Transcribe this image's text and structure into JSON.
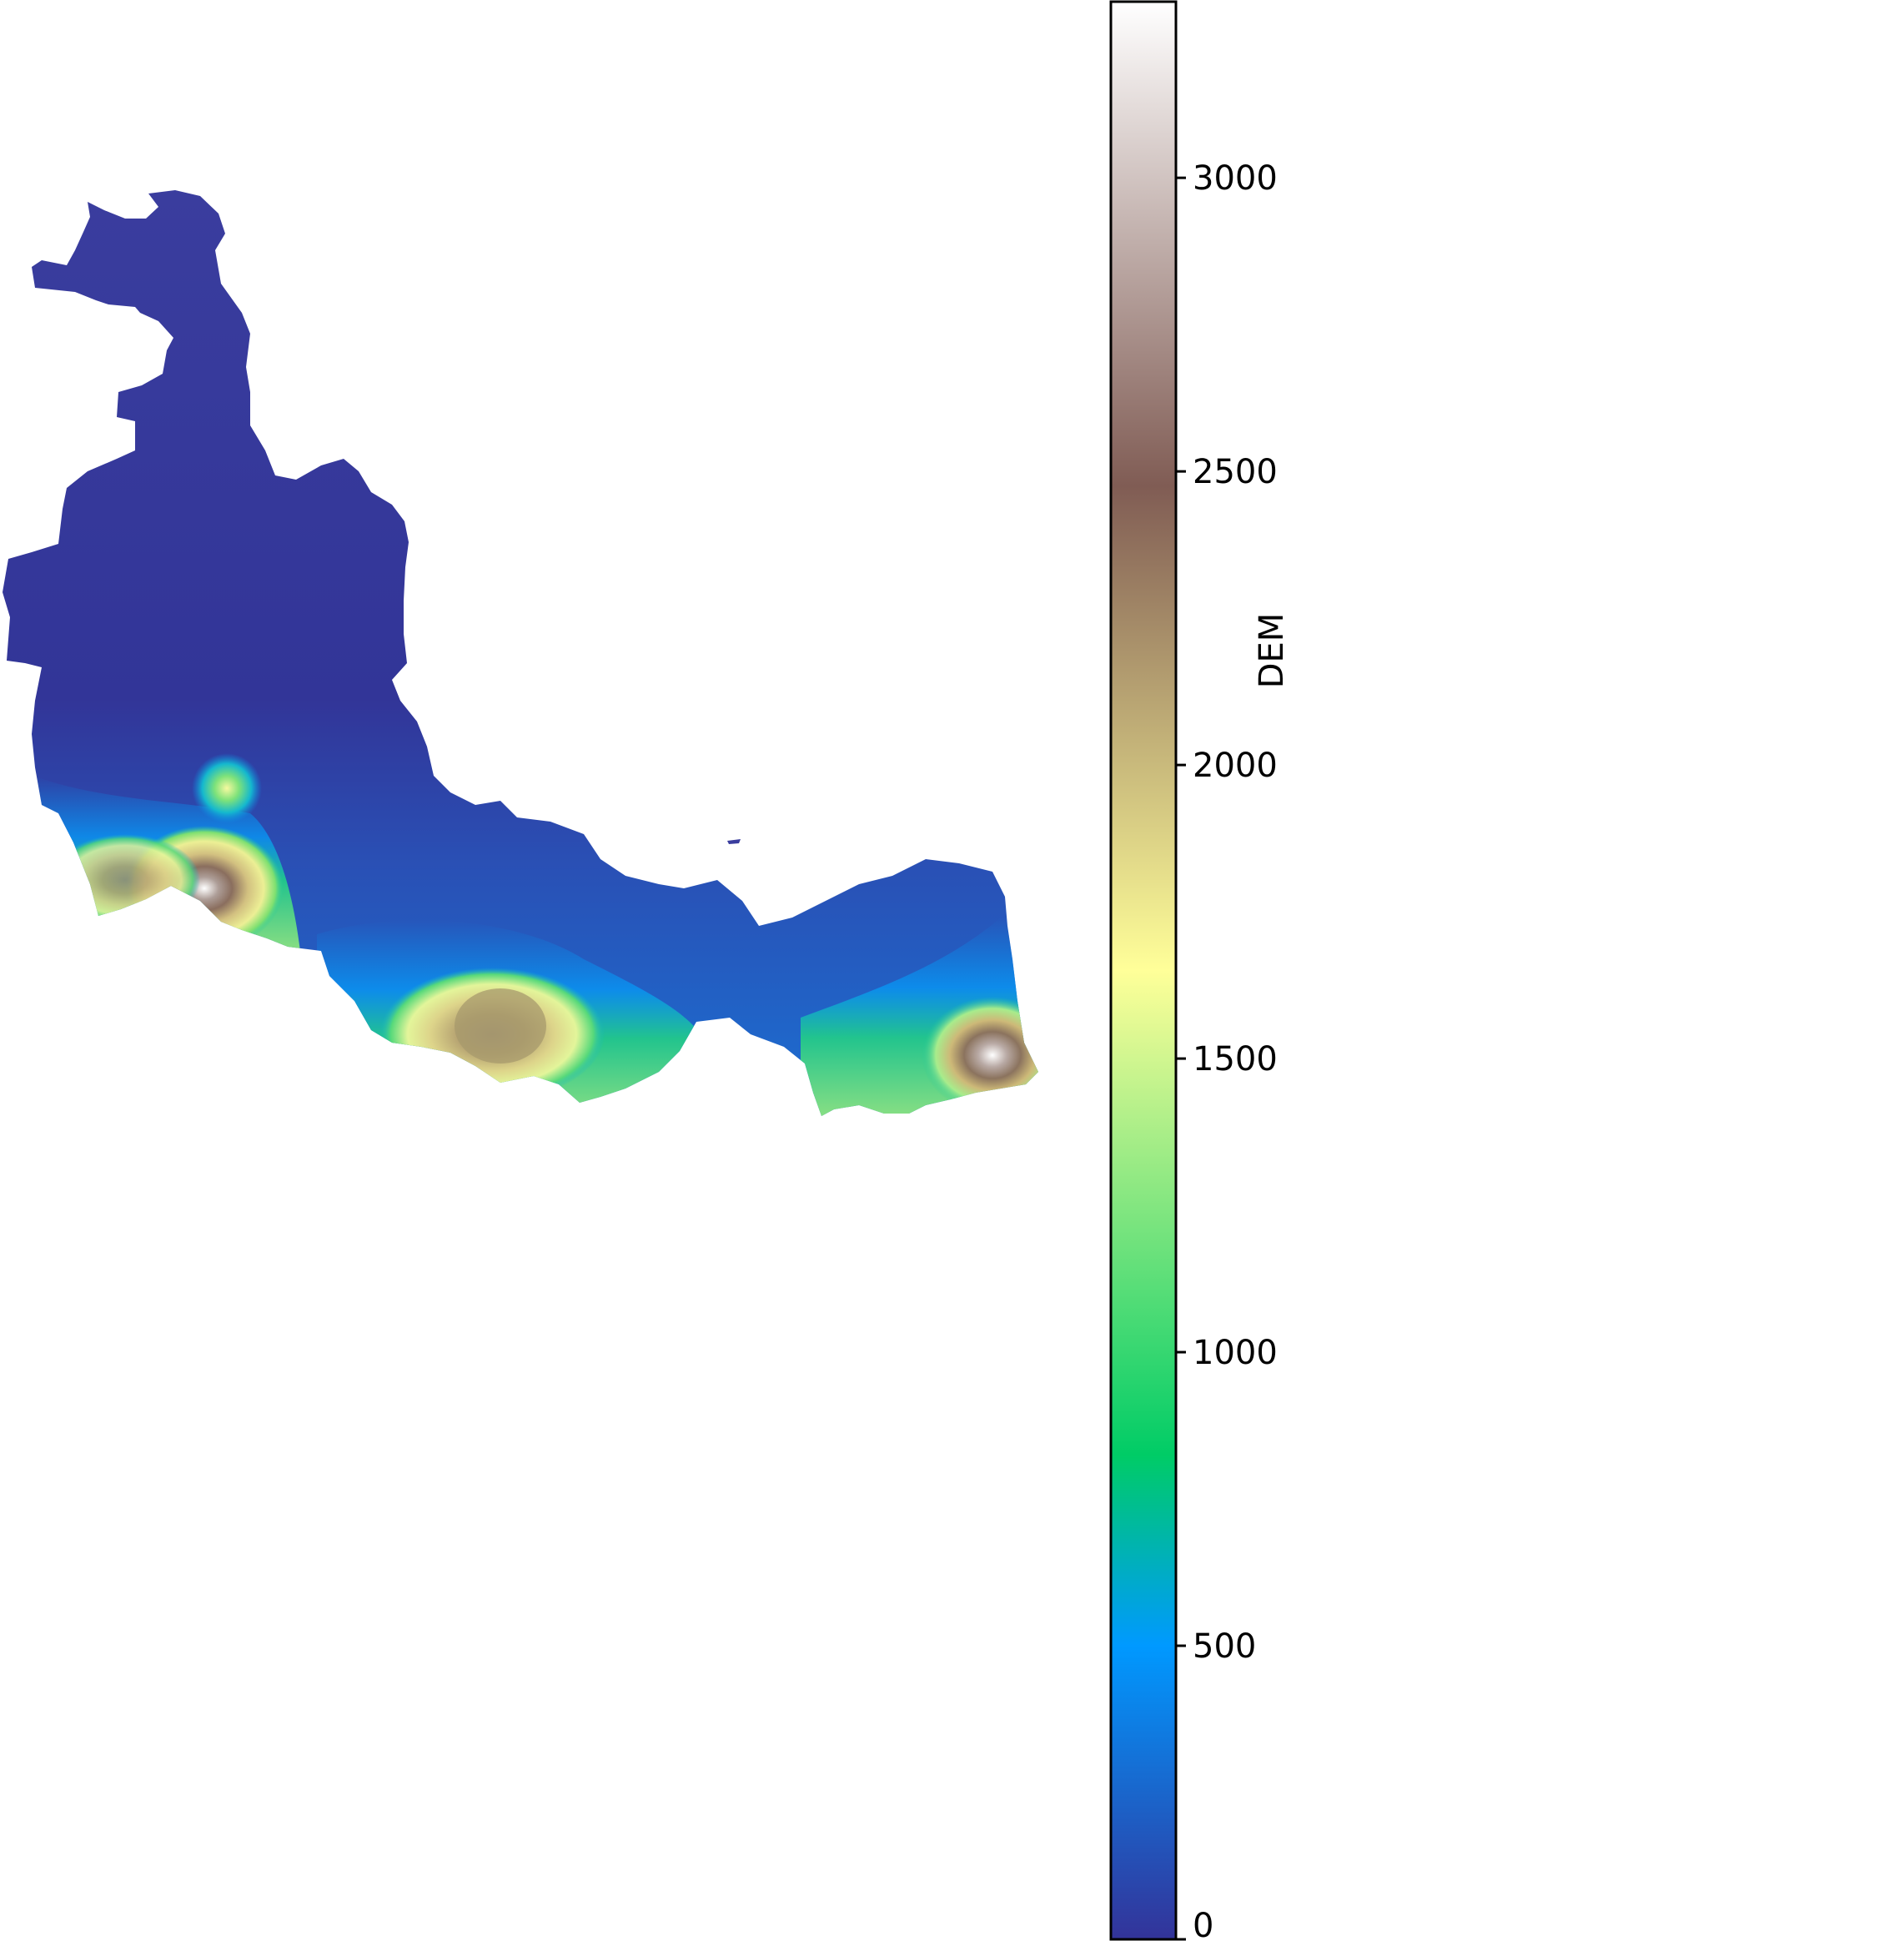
{
  "map": {
    "type": "raster-elevation",
    "colormap": "terrain",
    "background": "#ffffff",
    "nodata": "transparent"
  },
  "colorbar": {
    "label": "DEM",
    "orientation": "vertical",
    "position": "right",
    "range": [
      0,
      3300
    ],
    "ticks": [
      0,
      500,
      1000,
      1500,
      2000,
      2500,
      3000
    ],
    "tick_labels": [
      "0",
      "500",
      "1000",
      "1500",
      "2000",
      "2500",
      "3000"
    ],
    "colors": [
      {
        "value": 0,
        "color": "#333399"
      },
      {
        "value": 500,
        "color": "#0099ff"
      },
      {
        "value": 825,
        "color": "#00cc66"
      },
      {
        "value": 1650,
        "color": "#ffff99"
      },
      {
        "value": 2475,
        "color": "#805c54"
      },
      {
        "value": 3300,
        "color": "#ffffff"
      }
    ]
  }
}
